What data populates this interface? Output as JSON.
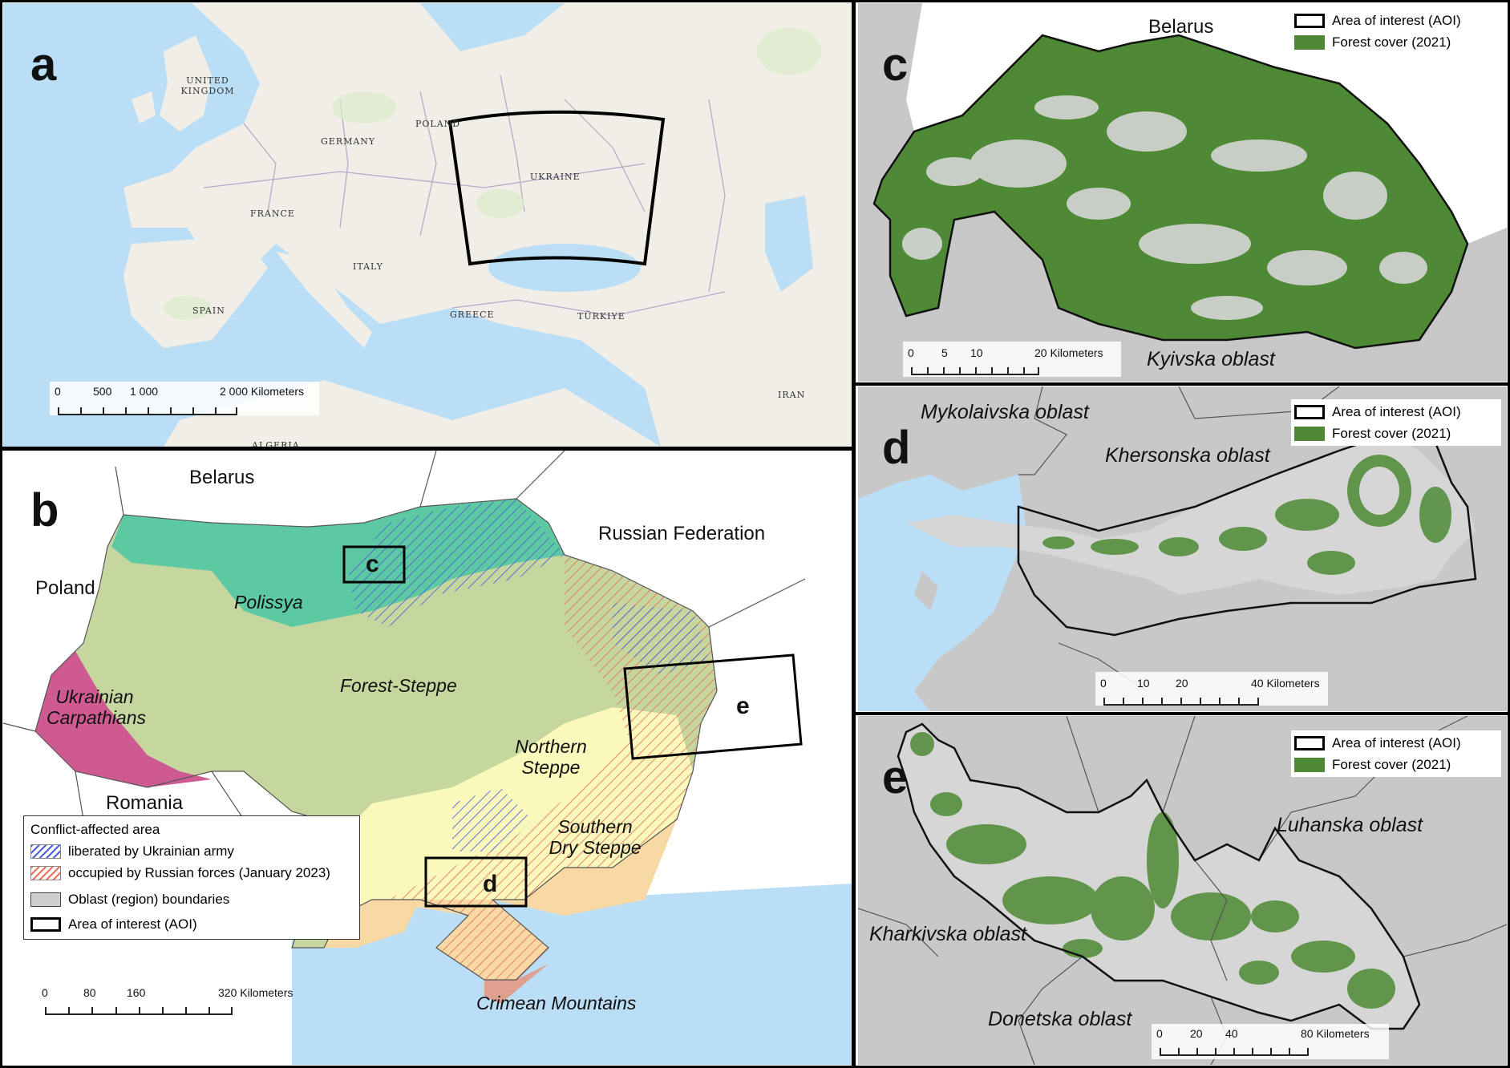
{
  "figure": {
    "panel_a": {
      "label": "a",
      "countries": [
        "UNITED KINGDOM",
        "GERMANY",
        "POLAND",
        "FRANCE",
        "UKRAINE",
        "ITALY",
        "SPAIN",
        "GREECE",
        "TÜRKIYE",
        "IRAN",
        "ALGERIA"
      ],
      "scale_ticks": [
        "0",
        "500",
        "1 000",
        "2 000 Kilometers"
      ]
    },
    "panel_b": {
      "label": "b",
      "countries": [
        "Belarus",
        "Russian Federation",
        "Poland",
        "Romania"
      ],
      "regions": [
        "Polissya",
        "Forest-Steppe",
        "Ukrainian Carpathians",
        "Northern Steppe",
        "Southern Dry Steppe",
        "Crimean Mountains"
      ],
      "aoi_labels": [
        "c",
        "d",
        "e"
      ],
      "legend": {
        "title": "Conflict-affected area",
        "liberated": "liberated by Ukrainian army",
        "occupied": "occupied by Russian forces (January 2023)",
        "oblast": "Oblast (region) boundaries",
        "aoi": "Area of interest (AOI)"
      },
      "scale_ticks": [
        "0",
        "80",
        "160",
        "320 Kilometers"
      ]
    },
    "panel_c": {
      "label": "c",
      "places": [
        "Belarus",
        "Kyivska oblast"
      ],
      "legend": {
        "aoi": "Area of interest (AOI)",
        "forest": "Forest cover (2021)"
      },
      "scale_ticks": [
        "0",
        "5",
        "10",
        "20 Kilometers"
      ]
    },
    "panel_d": {
      "label": "d",
      "places": [
        "Mykolaivska oblast",
        "Khersonska oblast"
      ],
      "legend": {
        "aoi": "Area of interest (AOI)",
        "forest": "Forest cover (2021)"
      },
      "scale_ticks": [
        "0",
        "10",
        "20",
        "40 Kilometers"
      ]
    },
    "panel_e": {
      "label": "e",
      "places": [
        "Luhanska oblast",
        "Kharkivska oblast",
        "Donetska oblast"
      ],
      "legend": {
        "aoi": "Area of interest (AOI)",
        "forest": "Forest cover (2021)"
      },
      "scale_ticks": [
        "0",
        "20",
        "40",
        "80 Kilometers"
      ]
    }
  },
  "colors": {
    "sea": "#b9def5",
    "land": "#f1eee8",
    "polissya": "#5dc9a3",
    "forest_steppe": "#c6d69f",
    "carpathians": "#cf5a92",
    "northern_steppe": "#fbf8bc",
    "southern_steppe": "#f8d9a3",
    "crimean_mountains": "#e0a090",
    "forest": "#4e8a35",
    "aoi_fill": "#d6d6d6",
    "outside": "#c8c8c8"
  }
}
